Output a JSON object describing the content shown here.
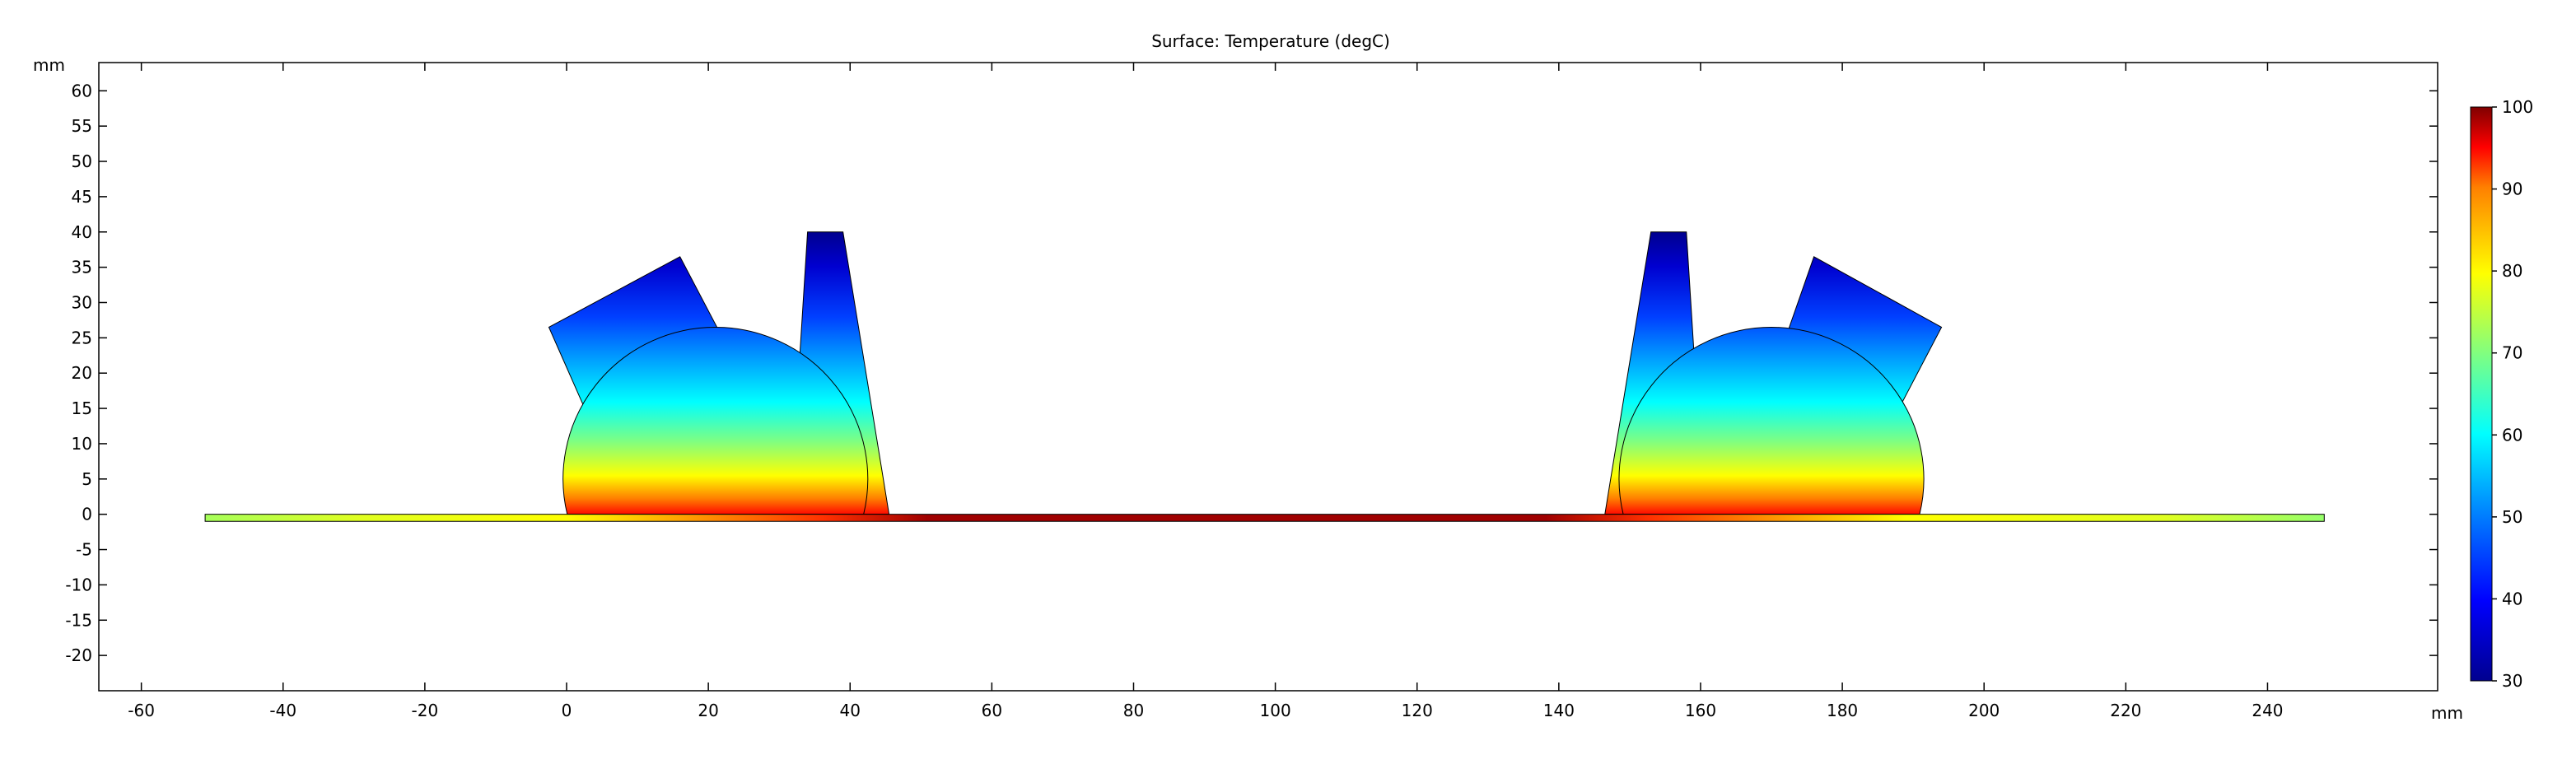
{
  "chart_data": {
    "type": "heatmap",
    "title": "Surface: Temperature (degC)",
    "xlabel": "mm",
    "ylabel": "mm",
    "xlim": [
      -66,
      264
    ],
    "ylim": [
      -25,
      64
    ],
    "x_ticks": [
      -60,
      -40,
      -20,
      0,
      20,
      40,
      60,
      80,
      100,
      120,
      140,
      160,
      180,
      200,
      220,
      240
    ],
    "y_ticks": [
      60,
      55,
      50,
      45,
      40,
      35,
      30,
      25,
      20,
      15,
      10,
      5,
      0,
      -5,
      -10,
      -15,
      -20
    ],
    "colorbar": {
      "label": "Temperature (degC)",
      "range": [
        30,
        100
      ],
      "ticks": [
        100,
        90,
        80,
        70,
        60,
        50,
        40,
        30
      ],
      "colormap": "rainbow"
    },
    "geometry": {
      "plate": {
        "x": [
          -51,
          248
        ],
        "y": [
          -1,
          0
        ]
      },
      "hot_zone": {
        "x": [
          46,
          146
        ]
      },
      "left_dome": {
        "cx": 21,
        "cy": 5,
        "r": 21.5
      },
      "right_dome": {
        "cx": 170,
        "cy": 5,
        "r": 21.5
      },
      "left_fin": {
        "points": [
          [
            34,
            40
          ],
          [
            39,
            40
          ],
          [
            45.5,
            0
          ],
          [
            31.5,
            0
          ]
        ]
      },
      "right_fin": {
        "points": [
          [
            153,
            40
          ],
          [
            158,
            40
          ],
          [
            160.5,
            0
          ],
          [
            146.5,
            0
          ]
        ]
      },
      "left_block": {
        "points": [
          [
            -2.5,
            26.5
          ],
          [
            16,
            36.5
          ],
          [
            22,
            25
          ],
          [
            3,
            14
          ]
        ]
      },
      "right_block": {
        "points": [
          [
            176,
            36.5
          ],
          [
            194,
            26.5
          ],
          [
            188,
            15
          ],
          [
            172,
            25
          ]
        ]
      }
    }
  }
}
